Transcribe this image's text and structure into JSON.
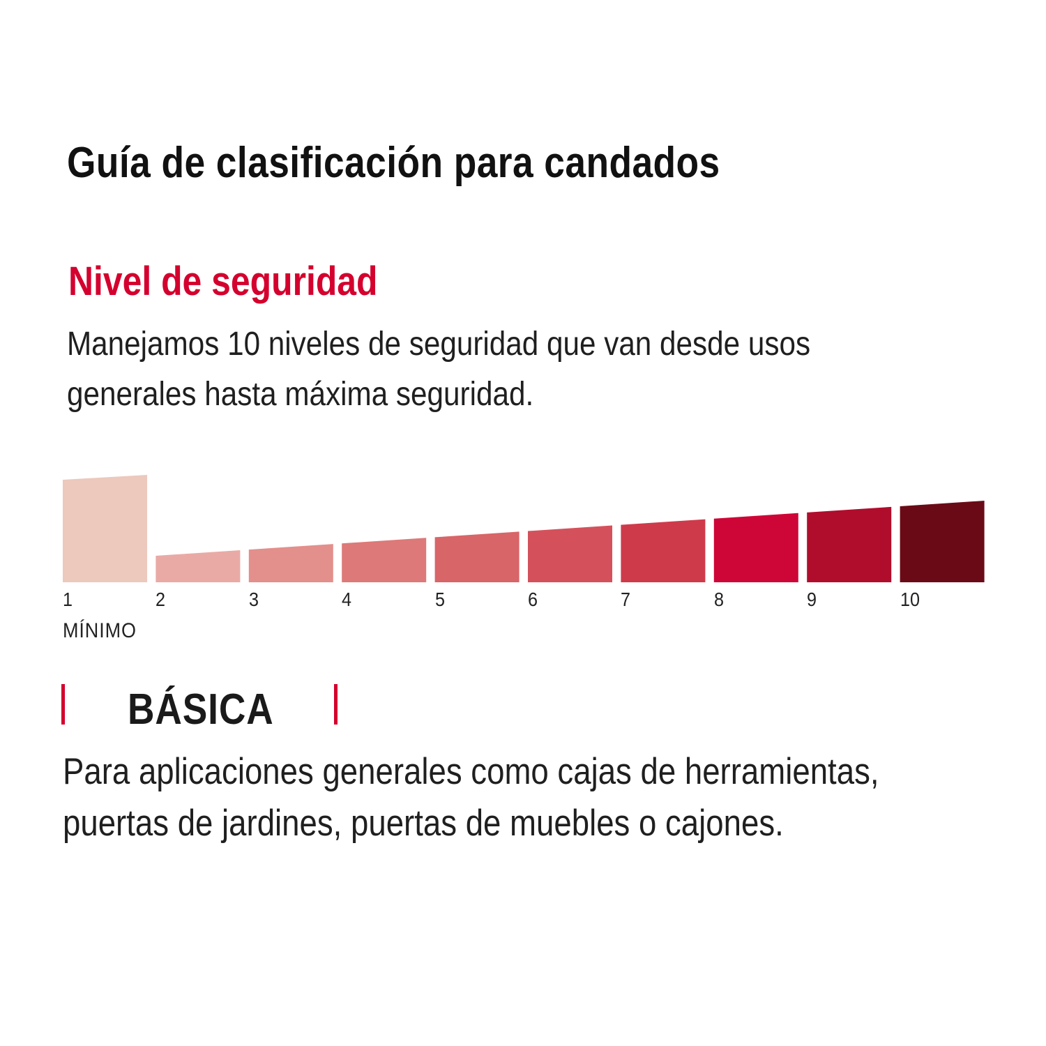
{
  "title": "Guía de clasificación para candados",
  "section": {
    "heading": "Nivel de seguridad",
    "description_line1": "Manejamos 10 niveles de seguridad que van desde usos",
    "description_line2": "generales hasta máxima seguridad."
  },
  "chart_data": {
    "type": "bar",
    "categories": [
      "1",
      "2",
      "3",
      "4",
      "5",
      "6",
      "7",
      "8",
      "9",
      "10"
    ],
    "values": [
      1,
      2,
      3,
      4,
      5,
      6,
      7,
      8,
      9,
      10
    ],
    "highlighted_level": 1,
    "min_label": "MÍNIMO",
    "colors": [
      "#ecc8bd",
      "#e9aaa6",
      "#e38f8c",
      "#dd7978",
      "#d86568",
      "#d4515b",
      "#cf3a4a",
      "#ce0637",
      "#b00d2d",
      "#6b0a17"
    ]
  },
  "category": {
    "name": "BÁSICA",
    "description_line1": "Para aplicaciones generales como cajas de herramientas,",
    "description_line2": "puertas de jardines, puertas de muebles o cajones.",
    "accent_color": "#d4002e"
  }
}
